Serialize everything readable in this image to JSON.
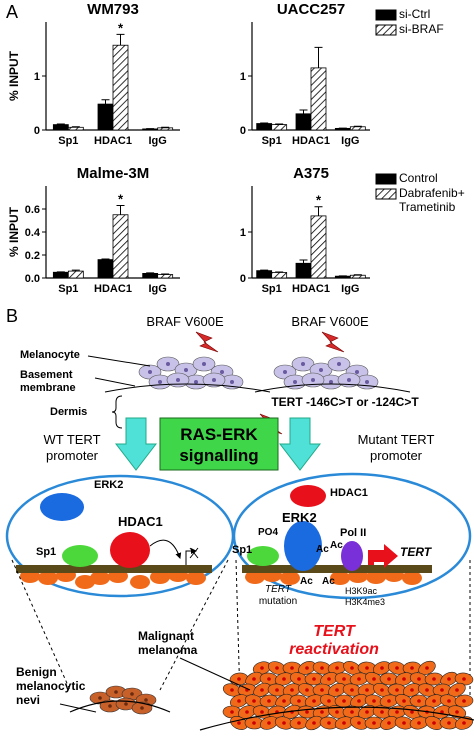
{
  "panel_a_label": "A",
  "chart_data": [
    {
      "type": "bar",
      "title": "WM793",
      "y_label": "% INPUT",
      "categories": [
        "Sp1",
        "HDAC1",
        "IgG"
      ],
      "series": [
        {
          "color": "#000000",
          "pattern": "solid",
          "values": [
            0.1,
            0.48,
            0.02
          ],
          "errors": [
            0.01,
            0.08,
            0.005
          ]
        },
        {
          "color": "#000000",
          "pattern": "hatch",
          "values": [
            0.05,
            1.57,
            0.04
          ],
          "errors": [
            0.01,
            0.2,
            0.01
          ]
        }
      ],
      "ylim": [
        0,
        2
      ],
      "yticks": [
        0,
        1
      ],
      "annotation": "*",
      "legend": false
    },
    {
      "type": "bar",
      "title": "UACC257",
      "categories": [
        "Sp1",
        "HDAC1",
        "IgG"
      ],
      "series": [
        {
          "name": "si-Ctrl",
          "color": "#000000",
          "pattern": "solid",
          "values": [
            0.12,
            0.3,
            0.03
          ],
          "errors": [
            0.01,
            0.07,
            0.005
          ]
        },
        {
          "name": "si-BRAF",
          "color": "#000000",
          "pattern": "hatch",
          "values": [
            0.1,
            1.15,
            0.06
          ],
          "errors": [
            0.01,
            0.38,
            0.01
          ]
        }
      ],
      "ylim": [
        0,
        2
      ],
      "yticks": [
        0,
        1
      ],
      "legend": true
    },
    {
      "type": "bar",
      "title": "Malme-3M",
      "y_label": "% INPUT",
      "categories": [
        "Sp1",
        "HDAC1",
        "IgG"
      ],
      "series": [
        {
          "color": "#000000",
          "pattern": "solid",
          "values": [
            0.05,
            0.16,
            0.04
          ],
          "errors": [
            0.003,
            0.005,
            0.005
          ]
        },
        {
          "color": "#000000",
          "pattern": "hatch",
          "values": [
            0.06,
            0.55,
            0.03
          ],
          "errors": [
            0.008,
            0.08,
            0.005
          ]
        }
      ],
      "ylim": [
        0,
        0.8
      ],
      "yticks": [
        {
          "value": 0,
          "label": "0.0"
        },
        0.2,
        0.4,
        0.6
      ],
      "annotation": "*",
      "legend": false
    },
    {
      "type": "bar",
      "title": "A375",
      "categories": [
        "Sp1",
        "HDAC1",
        "IgG"
      ],
      "series": [
        {
          "name": "Control",
          "color": "#000000",
          "pattern": "solid",
          "values": [
            0.16,
            0.32,
            0.04
          ],
          "errors": [
            0.01,
            0.07,
            0.005
          ]
        },
        {
          "name": "Dabrafenib+ Trametinib",
          "color": "#000000",
          "pattern": "hatch",
          "values": [
            0.12,
            1.35,
            0.06
          ],
          "errors": [
            0.01,
            0.2,
            0.01
          ]
        }
      ],
      "ylim": [
        0,
        2
      ],
      "yticks": [
        0,
        1
      ],
      "annotation": "*",
      "legend": true
    }
  ],
  "diagram": {
    "panel_label": "B",
    "left_mutation": "BRAF V600E",
    "right_mutation": "BRAF V600E",
    "melanocyte": "Melanocyte",
    "basement": [
      "Basement",
      "membrane"
    ],
    "dermis": "Dermis",
    "tert_mutation": "TERT -146C>T or -124C>T",
    "wt_promoter": [
      "WT TERT",
      "promoter"
    ],
    "signalling": [
      "RAS-ERK",
      "signalling"
    ],
    "mutant_promoter": [
      "Mutant TERT",
      "promoter"
    ],
    "left_oval": {
      "erk2": "ERK2",
      "hdac1": "HDAC1",
      "sp1": "Sp1"
    },
    "right_oval": {
      "hdac1": "HDAC1",
      "erk2": "ERK2",
      "pol2": "Pol II",
      "sp1": "Sp1",
      "po4": "PO4",
      "ac": [
        "Ac",
        "Ac",
        "Ac",
        "Ac"
      ],
      "tert": "TERT",
      "tert_site": [
        "TERT",
        "mutation"
      ],
      "marks": [
        "H3K9ac",
        "H3K4me3"
      ]
    },
    "nevi": [
      "Benign",
      "melanocytic",
      "nevi"
    ],
    "melanoma": [
      "Malignant",
      "melanoma"
    ],
    "reactivation": [
      "TERT",
      "reactivation"
    ]
  }
}
